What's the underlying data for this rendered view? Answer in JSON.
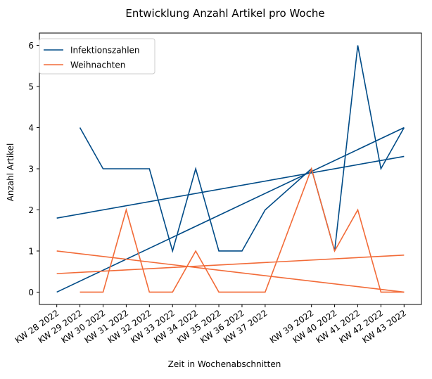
{
  "chart_data": {
    "type": "line",
    "title": "Entwicklung Anzahl Artikel pro Woche",
    "xlabel": "Zeit in Wochenabschnitten",
    "ylabel": "Anzahl Artikel",
    "ylim": [
      -0.3,
      6.3
    ],
    "yticks": [
      0,
      1,
      2,
      3,
      4,
      5,
      6
    ],
    "legend_position": "upper-left",
    "grid": false,
    "x": [
      "KW 28 2022",
      "KW 29 2022",
      "KW 30 2022",
      "KW 31 2022",
      "KW 32 2022",
      "KW 33 2022",
      "KW 34 2022",
      "KW 35 2022",
      "KW 36 2022",
      "KW 37 2022",
      "KW 39 2022",
      "KW 40 2022",
      "KW 41 2022",
      "KW 42 2022",
      "KW 43 2022"
    ],
    "x_week": [
      28,
      29,
      30,
      31,
      32,
      33,
      34,
      35,
      36,
      37,
      39,
      40,
      41,
      42,
      43
    ],
    "series": [
      {
        "name": "Infektionszahlen",
        "color": "#004b87",
        "x": [
          "KW 29 2022",
          "KW 30 2022",
          "KW 31 2022",
          "KW 32 2022",
          "KW 33 2022",
          "KW 34 2022",
          "KW 35 2022",
          "KW 36 2022",
          "KW 37 2022",
          "KW 39 2022",
          "KW 40 2022",
          "KW 41 2022",
          "KW 42 2022",
          "KW 43 2022"
        ],
        "values": [
          4,
          3,
          3,
          3,
          1,
          3,
          1,
          1,
          2,
          3,
          1,
          6,
          3,
          4
        ]
      },
      {
        "name": "Weihnachten",
        "color": "#f26b38",
        "x": [
          "KW 29 2022",
          "KW 30 2022",
          "KW 31 2022",
          "KW 32 2022",
          "KW 33 2022",
          "KW 34 2022",
          "KW 35 2022",
          "KW 36 2022",
          "KW 37 2022",
          "KW 39 2022",
          "KW 40 2022",
          "KW 41 2022",
          "KW 42 2022",
          "KW 43 2022"
        ],
        "values": [
          0,
          0,
          2,
          0,
          0,
          1,
          0,
          0,
          0,
          3,
          1,
          2,
          0,
          0
        ]
      }
    ],
    "trend_lines": [
      {
        "color": "#004b87",
        "x": [
          "KW 28 2022",
          "KW 43 2022"
        ],
        "values": [
          1.8,
          3.3
        ]
      },
      {
        "color": "#004b87",
        "x": [
          "KW 28 2022",
          "KW 43 2022"
        ],
        "values": [
          0,
          4
        ]
      },
      {
        "color": "#f26b38",
        "x": [
          "KW 28 2022",
          "KW 43 2022"
        ],
        "values": [
          0.45,
          0.9
        ]
      },
      {
        "color": "#f26b38",
        "x": [
          "KW 28 2022",
          "KW 43 2022"
        ],
        "values": [
          1,
          0
        ]
      }
    ]
  }
}
